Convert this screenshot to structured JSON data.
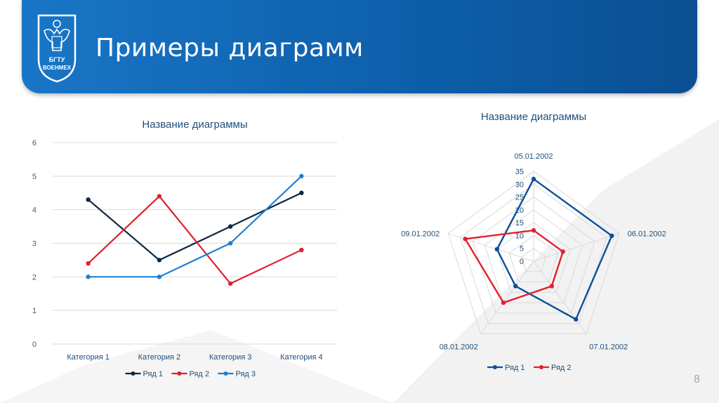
{
  "header": {
    "title": "Примеры диаграмм",
    "logo_text": [
      "БГТУ",
      "ВОЕНМЕХ"
    ]
  },
  "page_number": "8",
  "colors": {
    "header": "#0d5ea9",
    "text_blue": "#1f4e79",
    "axis_text": "#595959",
    "grid": "#d9d9d9"
  },
  "chart_data": [
    {
      "type": "line",
      "title": "Название диаграммы",
      "categories": [
        "Категория 1",
        "Категория 2",
        "Категория 3",
        "Категория 4"
      ],
      "ylim": [
        0,
        6
      ],
      "yticks": [
        "0",
        "1",
        "2",
        "3",
        "4",
        "5",
        "6"
      ],
      "grid": true,
      "legend": "bottom",
      "series": [
        {
          "name": "Ряд 1",
          "values": [
            4.3,
            2.5,
            3.5,
            4.5
          ],
          "color": "#0e2841"
        },
        {
          "name": "Ряд 2",
          "values": [
            2.4,
            4.4,
            1.8,
            2.8
          ],
          "color": "#e0202f"
        },
        {
          "name": "Ряд 3",
          "values": [
            2,
            2,
            3,
            5
          ],
          "color": "#1f7fcf"
        }
      ]
    },
    {
      "type": "radar",
      "title": "Название диаграммы",
      "categories": [
        "05.01.2002",
        "06.01.2002",
        "07.01.2002",
        "08.01.2002",
        "09.01.2002"
      ],
      "rlim": [
        0,
        35
      ],
      "rticks": [
        "0",
        "5",
        "10",
        "15",
        "20",
        "25",
        "30",
        "35"
      ],
      "legend": "bottom",
      "series": [
        {
          "name": "Ряд 1",
          "values": [
            32,
            32,
            28,
            12,
            15
          ],
          "color": "#0b4f9c"
        },
        {
          "name": "Ряд 2",
          "values": [
            12,
            12,
            12,
            20,
            28
          ],
          "color": "#e0202f"
        }
      ]
    }
  ]
}
